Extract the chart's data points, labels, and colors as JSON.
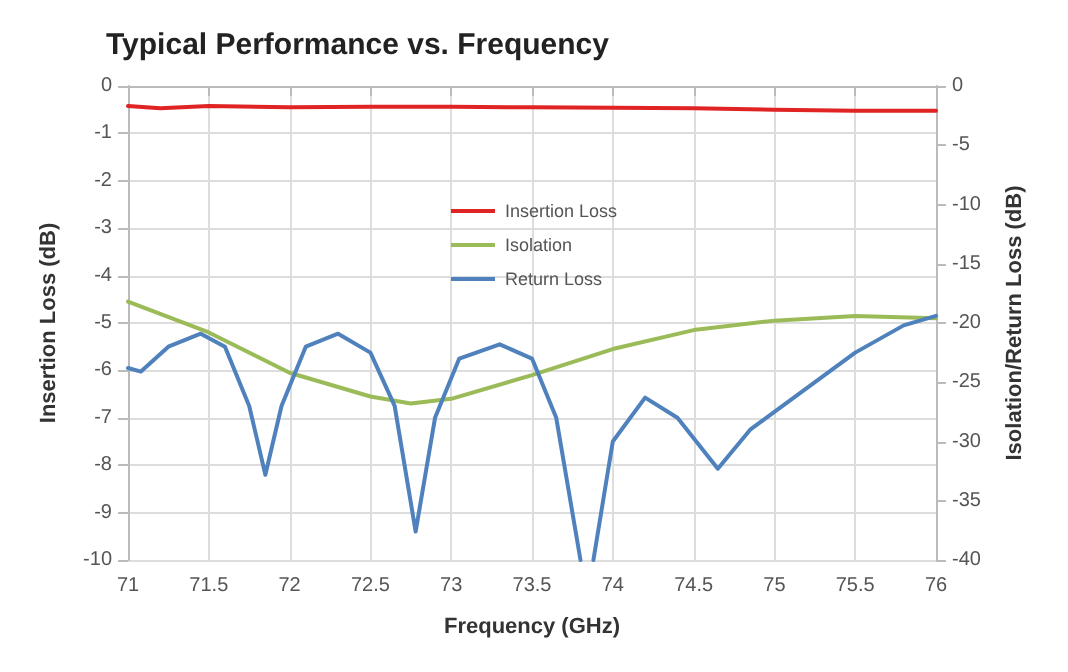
{
  "chart_data": {
    "type": "line",
    "title": "Typical Performance vs. Frequency",
    "xlabel": "Frequency (GHz)",
    "ylabel": "Insertion Loss (dB)",
    "y2label": "Isolation/Return Loss (dB)",
    "xlim": [
      71,
      76
    ],
    "xticks": [
      71,
      71.5,
      72,
      72.5,
      73,
      73.5,
      74,
      74.5,
      75,
      75.5,
      76
    ],
    "ylim": [
      -10,
      0
    ],
    "yticks": [
      -10,
      -9,
      -8,
      -7,
      -6,
      -5,
      -4,
      -3,
      -2,
      -1,
      0
    ],
    "y2lim": [
      -40,
      0
    ],
    "y2ticks": [
      -40,
      -35,
      -30,
      -25,
      -20,
      -15,
      -10,
      -5,
      0
    ],
    "grid": true,
    "legend": "top",
    "marker": "none",
    "line_style": "solid",
    "series": [
      {
        "name": "Insertion Loss",
        "color": "#e02424",
        "x": [
          71,
          71.2,
          71.5,
          72,
          72.5,
          73,
          73.5,
          74,
          74.5,
          75,
          75.5,
          76
        ],
        "values": [
          -0.42,
          -0.47,
          -0.42,
          -0.45,
          -0.44,
          -0.44,
          -0.45,
          -0.46,
          -0.47,
          -0.5,
          -0.52,
          -0.52
        ]
      },
      {
        "name": "Isolation",
        "color": "#9bbb59",
        "axis": "y2",
        "x": [
          71,
          71.5,
          72,
          72.5,
          72.75,
          73,
          73.5,
          74,
          74.5,
          75,
          75.5,
          76
        ],
        "values": [
          -18.2,
          -20.8,
          -24.2,
          -26.2,
          -26.8,
          -26.4,
          -24.4,
          -22.2,
          -20.6,
          -19.8,
          -19.4,
          -19.6
        ]
      },
      {
        "name": "Return Loss",
        "color": "#4f81bd",
        "axis": "y2",
        "x": [
          71,
          71.08,
          71.25,
          71.45,
          71.6,
          71.75,
          71.85,
          71.95,
          72.1,
          72.3,
          72.5,
          72.65,
          72.78,
          72.9,
          73.05,
          73.3,
          73.5,
          73.65,
          73.8,
          73.84,
          73.88,
          74,
          74.2,
          74.4,
          74.65,
          74.85,
          75,
          75.5,
          75.8,
          76
        ],
        "values": [
          -23.8,
          -24.1,
          -22,
          -20.9,
          -22,
          -27,
          -32.8,
          -27,
          -22,
          -20.9,
          -22.5,
          -27,
          -37.6,
          -28,
          -23,
          -21.8,
          -23,
          -28,
          -40,
          null,
          -40,
          -30,
          -26.3,
          -28,
          -32.3,
          -29,
          -27.5,
          -22.5,
          -20.2,
          -19.4
        ]
      }
    ]
  }
}
